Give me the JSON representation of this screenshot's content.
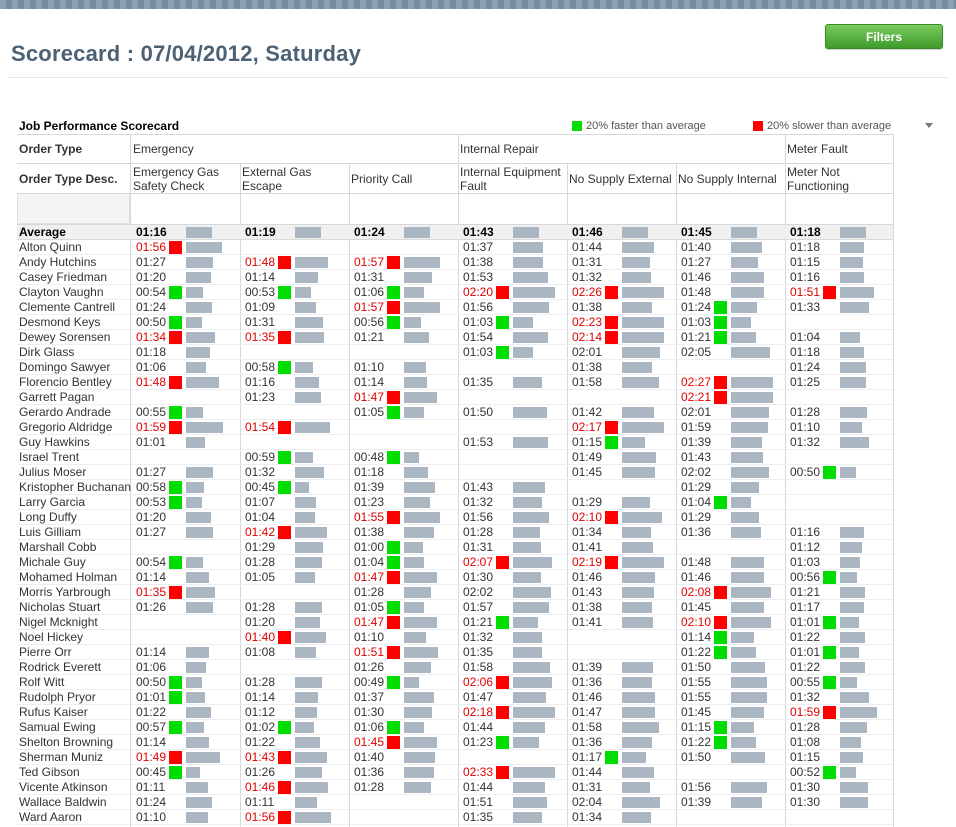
{
  "page": {
    "title": "Scorecard : 07/04/2012, Saturday",
    "filters_label": "Filters"
  },
  "scorecard": {
    "heading": "Job Performance Scorecard",
    "legend_fast": "20% faster than average",
    "legend_slow": "20% slower than average",
    "colors": {
      "fast": "#00dd00",
      "slow": "#ff0000",
      "bar": "#aab6c2"
    },
    "order_type_label": "Order Type",
    "order_type_desc_label": "Order Type Desc.",
    "groups": [
      "Emergency",
      "Internal Repair",
      "Meter Fault"
    ],
    "columns": [
      "Emergency Gas Safety Check",
      "External Gas Escape",
      "Priority Call",
      "Internal Equipment Fault",
      "No Supply External",
      "No Supply Internal",
      "Meter Not Functioning"
    ],
    "average_label": "Average",
    "averages": [
      "01:16",
      "01:19",
      "01:24",
      "01:43",
      "01:46",
      "01:45",
      "01:18"
    ],
    "rows": [
      {
        "name": "Alton  Quinn",
        "c": [
          [
            "01:56",
            "s"
          ],
          null,
          null,
          [
            "01:37",
            ""
          ],
          [
            "01:44",
            ""
          ],
          [
            "01:40",
            ""
          ],
          [
            "01:18",
            ""
          ]
        ]
      },
      {
        "name": "Andy  Hutchins",
        "c": [
          [
            "01:27",
            ""
          ],
          [
            "01:48",
            "s"
          ],
          [
            "01:57",
            "s"
          ],
          [
            "01:38",
            ""
          ],
          [
            "01:31",
            ""
          ],
          [
            "01:27",
            ""
          ],
          [
            "01:15",
            ""
          ]
        ]
      },
      {
        "name": "Casey  Friedman",
        "c": [
          [
            "01:20",
            ""
          ],
          [
            "01:14",
            ""
          ],
          [
            "01:31",
            ""
          ],
          [
            "01:53",
            ""
          ],
          [
            "01:32",
            ""
          ],
          [
            "01:46",
            ""
          ],
          [
            "01:16",
            ""
          ]
        ]
      },
      {
        "name": "Clayton  Vaughn",
        "c": [
          [
            "00:54",
            "f"
          ],
          [
            "00:53",
            "f"
          ],
          [
            "01:06",
            "f"
          ],
          [
            "02:20",
            "s"
          ],
          [
            "02:26",
            "s"
          ],
          [
            "01:48",
            ""
          ],
          [
            "01:51",
            "s"
          ]
        ]
      },
      {
        "name": "Clemente  Cantrell",
        "c": [
          [
            "01:24",
            ""
          ],
          [
            "01:09",
            ""
          ],
          [
            "01:57",
            "s"
          ],
          [
            "01:56",
            ""
          ],
          [
            "01:38",
            ""
          ],
          [
            "01:24",
            "f"
          ],
          [
            "01:33",
            ""
          ]
        ]
      },
      {
        "name": "Desmond  Keys",
        "c": [
          [
            "00:50",
            "f"
          ],
          [
            "01:31",
            ""
          ],
          [
            "00:56",
            "f"
          ],
          [
            "01:03",
            "f"
          ],
          [
            "02:23",
            "s"
          ],
          [
            "01:03",
            "f"
          ],
          null
        ]
      },
      {
        "name": "Dewey  Sorensen",
        "c": [
          [
            "01:34",
            "s"
          ],
          [
            "01:35",
            "s"
          ],
          [
            "01:21",
            ""
          ],
          [
            "01:54",
            ""
          ],
          [
            "02:14",
            "s"
          ],
          [
            "01:21",
            "f"
          ],
          [
            "01:04",
            ""
          ]
        ]
      },
      {
        "name": "Dirk  Glass",
        "c": [
          [
            "01:18",
            ""
          ],
          null,
          null,
          [
            "01:03",
            "f"
          ],
          [
            "02:01",
            ""
          ],
          [
            "02:05",
            ""
          ],
          [
            "01:18",
            ""
          ]
        ]
      },
      {
        "name": "Domingo  Sawyer",
        "c": [
          [
            "01:06",
            ""
          ],
          [
            "00:58",
            "f"
          ],
          [
            "01:10",
            ""
          ],
          null,
          [
            "01:38",
            ""
          ],
          null,
          [
            "01:24",
            ""
          ]
        ]
      },
      {
        "name": "Florencio  Bentley",
        "c": [
          [
            "01:48",
            "s"
          ],
          [
            "01:16",
            ""
          ],
          [
            "01:14",
            ""
          ],
          [
            "01:35",
            ""
          ],
          [
            "01:58",
            ""
          ],
          [
            "02:27",
            "s"
          ],
          [
            "01:25",
            ""
          ]
        ]
      },
      {
        "name": "Garrett  Pagan",
        "c": [
          null,
          [
            "01:23",
            ""
          ],
          [
            "01:47",
            "s"
          ],
          null,
          null,
          [
            "02:21",
            "s"
          ],
          null
        ]
      },
      {
        "name": "Gerardo  Andrade",
        "c": [
          [
            "00:55",
            "f"
          ],
          null,
          [
            "01:05",
            "f"
          ],
          [
            "01:50",
            ""
          ],
          [
            "01:42",
            ""
          ],
          [
            "02:01",
            ""
          ],
          [
            "01:28",
            ""
          ]
        ]
      },
      {
        "name": "Gregorio  Aldridge",
        "c": [
          [
            "01:59",
            "s"
          ],
          [
            "01:54",
            "s"
          ],
          null,
          null,
          [
            "02:17",
            "s"
          ],
          [
            "01:59",
            ""
          ],
          [
            "01:10",
            ""
          ]
        ]
      },
      {
        "name": "Guy  Hawkins",
        "c": [
          [
            "01:01",
            ""
          ],
          null,
          null,
          [
            "01:53",
            ""
          ],
          [
            "01:15",
            "f"
          ],
          [
            "01:39",
            ""
          ],
          [
            "01:32",
            ""
          ]
        ]
      },
      {
        "name": "Israel  Trent",
        "c": [
          null,
          [
            "00:59",
            "f"
          ],
          [
            "00:48",
            "f"
          ],
          null,
          [
            "01:49",
            ""
          ],
          [
            "01:43",
            ""
          ],
          null
        ]
      },
      {
        "name": "Julius  Moser",
        "c": [
          [
            "01:27",
            ""
          ],
          [
            "01:32",
            ""
          ],
          [
            "01:18",
            ""
          ],
          null,
          [
            "01:45",
            ""
          ],
          [
            "02:02",
            ""
          ],
          [
            "00:50",
            "f"
          ]
        ]
      },
      {
        "name": "Kristopher  Buchanan",
        "c": [
          [
            "00:58",
            "f"
          ],
          [
            "00:45",
            "f"
          ],
          [
            "01:39",
            ""
          ],
          [
            "01:43",
            ""
          ],
          null,
          [
            "01:29",
            ""
          ],
          null
        ]
      },
      {
        "name": "Larry  Garcia",
        "c": [
          [
            "00:53",
            "f"
          ],
          [
            "01:07",
            ""
          ],
          [
            "01:23",
            ""
          ],
          [
            "01:32",
            ""
          ],
          [
            "01:29",
            ""
          ],
          [
            "01:04",
            "f"
          ],
          null
        ]
      },
      {
        "name": "Long  Duffy",
        "c": [
          [
            "01:20",
            ""
          ],
          [
            "01:04",
            ""
          ],
          [
            "01:55",
            "s"
          ],
          [
            "01:56",
            ""
          ],
          [
            "02:10",
            "s"
          ],
          [
            "01:29",
            ""
          ],
          null
        ]
      },
      {
        "name": "Luis  Gilliam",
        "c": [
          [
            "01:27",
            ""
          ],
          [
            "01:42",
            "s"
          ],
          [
            "01:38",
            ""
          ],
          [
            "01:28",
            ""
          ],
          [
            "01:34",
            ""
          ],
          [
            "01:36",
            ""
          ],
          [
            "01:16",
            ""
          ]
        ]
      },
      {
        "name": "Marshall  Cobb",
        "c": [
          null,
          [
            "01:29",
            ""
          ],
          [
            "01:00",
            "f"
          ],
          [
            "01:31",
            ""
          ],
          [
            "01:41",
            ""
          ],
          null,
          [
            "01:12",
            ""
          ]
        ]
      },
      {
        "name": "Michale  Guy",
        "c": [
          [
            "00:54",
            "f"
          ],
          [
            "01:28",
            ""
          ],
          [
            "01:04",
            "f"
          ],
          [
            "02:07",
            "s"
          ],
          [
            "02:19",
            "s"
          ],
          [
            "01:48",
            ""
          ],
          [
            "01:03",
            ""
          ]
        ]
      },
      {
        "name": "Mohamed  Holman",
        "c": [
          [
            "01:14",
            ""
          ],
          [
            "01:05",
            ""
          ],
          [
            "01:47",
            "s"
          ],
          [
            "01:30",
            ""
          ],
          [
            "01:46",
            ""
          ],
          [
            "01:46",
            ""
          ],
          [
            "00:56",
            "f"
          ]
        ]
      },
      {
        "name": "Morris  Yarbrough",
        "c": [
          [
            "01:35",
            "s"
          ],
          null,
          [
            "01:28",
            ""
          ],
          [
            "02:02",
            ""
          ],
          [
            "01:43",
            ""
          ],
          [
            "02:08",
            "s"
          ],
          [
            "01:21",
            ""
          ]
        ]
      },
      {
        "name": "Nicholas  Stuart",
        "c": [
          [
            "01:26",
            ""
          ],
          [
            "01:28",
            ""
          ],
          [
            "01:05",
            "f"
          ],
          [
            "01:57",
            ""
          ],
          [
            "01:38",
            ""
          ],
          [
            "01:45",
            ""
          ],
          [
            "01:17",
            ""
          ]
        ]
      },
      {
        "name": "Nigel  Mcknight",
        "c": [
          null,
          [
            "01:20",
            ""
          ],
          [
            "01:47",
            "s"
          ],
          [
            "01:21",
            "f"
          ],
          [
            "01:41",
            ""
          ],
          [
            "02:10",
            "s"
          ],
          [
            "01:01",
            "f"
          ]
        ]
      },
      {
        "name": "Noel  Hickey",
        "c": [
          null,
          [
            "01:40",
            "s"
          ],
          [
            "01:10",
            ""
          ],
          [
            "01:32",
            ""
          ],
          null,
          [
            "01:14",
            "f"
          ],
          [
            "01:22",
            ""
          ]
        ]
      },
      {
        "name": "Pierre  Orr",
        "c": [
          [
            "01:14",
            ""
          ],
          [
            "01:08",
            ""
          ],
          [
            "01:51",
            "s"
          ],
          [
            "01:35",
            ""
          ],
          null,
          [
            "01:22",
            "f"
          ],
          [
            "01:01",
            "f"
          ]
        ]
      },
      {
        "name": "Rodrick  Everett",
        "c": [
          [
            "01:06",
            ""
          ],
          null,
          [
            "01:26",
            ""
          ],
          [
            "01:58",
            ""
          ],
          [
            "01:39",
            ""
          ],
          [
            "01:50",
            ""
          ],
          [
            "01:22",
            ""
          ]
        ]
      },
      {
        "name": "Rolf  Witt",
        "c": [
          [
            "00:50",
            "f"
          ],
          [
            "01:28",
            ""
          ],
          [
            "00:49",
            "f"
          ],
          [
            "02:06",
            "s"
          ],
          [
            "01:36",
            ""
          ],
          [
            "01:55",
            ""
          ],
          [
            "00:55",
            "f"
          ]
        ]
      },
      {
        "name": "Rudolph  Pryor",
        "c": [
          [
            "01:01",
            "f"
          ],
          [
            "01:14",
            ""
          ],
          [
            "01:37",
            ""
          ],
          [
            "01:47",
            ""
          ],
          [
            "01:46",
            ""
          ],
          [
            "01:55",
            ""
          ],
          [
            "01:32",
            ""
          ]
        ]
      },
      {
        "name": "Rufus  Kaiser",
        "c": [
          [
            "01:22",
            ""
          ],
          [
            "01:12",
            ""
          ],
          [
            "01:30",
            ""
          ],
          [
            "02:18",
            "s"
          ],
          [
            "01:47",
            ""
          ],
          [
            "01:45",
            ""
          ],
          [
            "01:59",
            "s"
          ]
        ]
      },
      {
        "name": "Samual  Ewing",
        "c": [
          [
            "00:57",
            "f"
          ],
          [
            "01:02",
            "f"
          ],
          [
            "01:06",
            "f"
          ],
          [
            "01:44",
            ""
          ],
          [
            "01:58",
            ""
          ],
          [
            "01:15",
            "f"
          ],
          [
            "01:28",
            ""
          ]
        ]
      },
      {
        "name": "Shelton  Browning",
        "c": [
          [
            "01:14",
            ""
          ],
          [
            "01:22",
            ""
          ],
          [
            "01:45",
            "s"
          ],
          [
            "01:23",
            "f"
          ],
          [
            "01:36",
            ""
          ],
          [
            "01:22",
            "f"
          ],
          [
            "01:08",
            ""
          ]
        ]
      },
      {
        "name": "Sherman  Muniz",
        "c": [
          [
            "01:49",
            "s"
          ],
          [
            "01:43",
            "s"
          ],
          [
            "01:40",
            ""
          ],
          null,
          [
            "01:17",
            "f"
          ],
          [
            "01:50",
            ""
          ],
          [
            "01:15",
            ""
          ]
        ]
      },
      {
        "name": "Ted  Gibson",
        "c": [
          [
            "00:45",
            "f"
          ],
          [
            "01:26",
            ""
          ],
          [
            "01:36",
            ""
          ],
          [
            "02:33",
            "s"
          ],
          [
            "01:44",
            ""
          ],
          null,
          [
            "00:52",
            "f"
          ]
        ]
      },
      {
        "name": "Vicente  Atkinson",
        "c": [
          [
            "01:11",
            ""
          ],
          [
            "01:46",
            "s"
          ],
          [
            "01:28",
            ""
          ],
          [
            "01:44",
            ""
          ],
          [
            "01:31",
            ""
          ],
          [
            "01:56",
            ""
          ],
          [
            "01:30",
            ""
          ]
        ]
      },
      {
        "name": "Wallace  Baldwin",
        "c": [
          [
            "01:24",
            ""
          ],
          [
            "01:11",
            ""
          ],
          null,
          [
            "01:51",
            ""
          ],
          [
            "02:04",
            ""
          ],
          [
            "01:39",
            ""
          ],
          [
            "01:30",
            ""
          ]
        ]
      },
      {
        "name": "Ward  Aaron",
        "c": [
          [
            "01:10",
            ""
          ],
          [
            "01:56",
            "s"
          ],
          null,
          [
            "01:35",
            ""
          ],
          [
            "01:34",
            ""
          ],
          null,
          null
        ]
      }
    ]
  }
}
